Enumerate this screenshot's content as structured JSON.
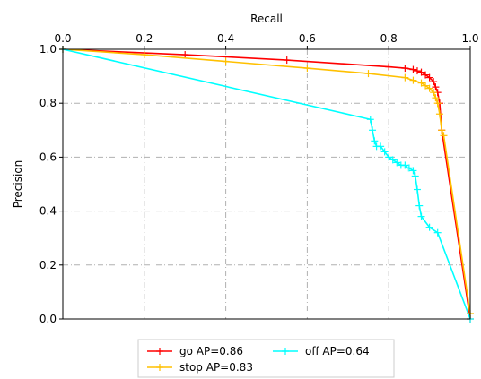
{
  "chart_data": {
    "type": "line",
    "xlabel": "Recall",
    "ylabel": "Precision",
    "xlim": [
      0.0,
      1.0
    ],
    "ylim": [
      0.0,
      1.0
    ],
    "x_axis_position": "top",
    "grid": true,
    "grid_style": "dash-dot",
    "legend_placement": "bottom-center (outside)",
    "xticks": [
      "0.0",
      "0.2",
      "0.4",
      "0.6",
      "0.8",
      "1.0"
    ],
    "yticks": [
      "0.0",
      "0.2",
      "0.4",
      "0.6",
      "0.8",
      "1.0"
    ],
    "xtick_values": [
      0.0,
      0.2,
      0.4,
      0.6,
      0.8,
      1.0
    ],
    "ytick_values": [
      0.0,
      0.2,
      0.4,
      0.6,
      0.8,
      1.0
    ],
    "series": [
      {
        "name": "go AP=0.86",
        "color": "#ff0000",
        "marker": "+",
        "x": [
          0.0,
          0.3,
          0.55,
          0.8,
          0.84,
          0.86,
          0.87,
          0.88,
          0.89,
          0.9,
          0.91,
          0.915,
          0.92,
          0.925,
          0.93,
          1.0
        ],
        "y": [
          1.0,
          0.98,
          0.96,
          0.935,
          0.93,
          0.925,
          0.92,
          0.915,
          0.905,
          0.895,
          0.88,
          0.86,
          0.84,
          0.8,
          0.7,
          0.0
        ]
      },
      {
        "name": "stop AP=0.83",
        "color": "#ffc000",
        "marker": "+",
        "x": [
          0.0,
          0.2,
          0.4,
          0.6,
          0.75,
          0.84,
          0.86,
          0.88,
          0.89,
          0.9,
          0.91,
          0.915,
          0.92,
          0.925,
          0.93,
          0.935,
          1.0
        ],
        "y": [
          1.0,
          0.98,
          0.955,
          0.93,
          0.91,
          0.895,
          0.885,
          0.875,
          0.865,
          0.855,
          0.84,
          0.82,
          0.8,
          0.76,
          0.7,
          0.68,
          0.02
        ]
      },
      {
        "name": "off AP=0.64",
        "color": "#00ffff",
        "marker": "+",
        "x": [
          0.0,
          0.755,
          0.76,
          0.765,
          0.77,
          0.78,
          0.79,
          0.8,
          0.81,
          0.82,
          0.83,
          0.84,
          0.845,
          0.85,
          0.86,
          0.865,
          0.87,
          0.875,
          0.88,
          0.9,
          0.92,
          1.0
        ],
        "y": [
          1.0,
          0.74,
          0.7,
          0.66,
          0.64,
          0.64,
          0.62,
          0.6,
          0.59,
          0.58,
          0.57,
          0.57,
          0.56,
          0.56,
          0.55,
          0.53,
          0.48,
          0.42,
          0.38,
          0.34,
          0.32,
          0.0
        ]
      }
    ]
  }
}
